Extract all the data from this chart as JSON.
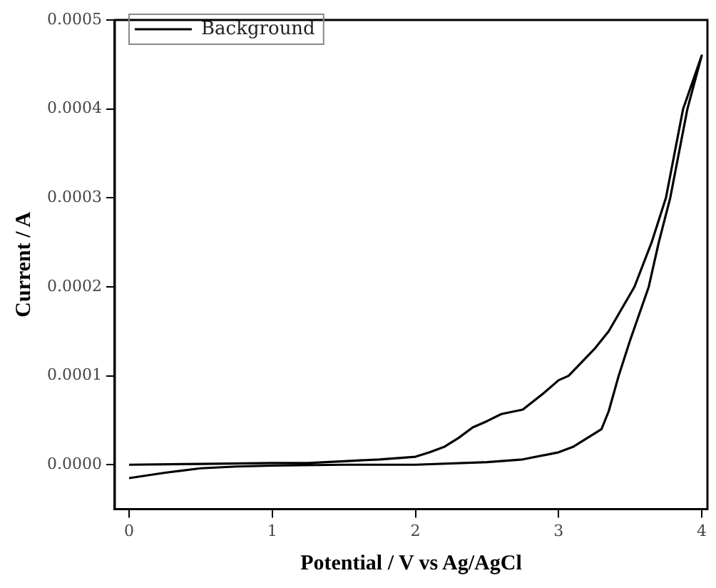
{
  "chart_data": {
    "type": "line",
    "xlabel": "Potential / V vs Ag/AgCl",
    "ylabel": "Current / A",
    "xlim": [
      -0.1,
      4.04
    ],
    "xticks": [
      0,
      1,
      2,
      3,
      4
    ],
    "ylim": [
      -5e-05,
      0.0005
    ],
    "yticks": [
      {
        "value": 0,
        "label": "0.0000"
      },
      {
        "value": 0.0001,
        "label": "0.0001"
      },
      {
        "value": 0.0002,
        "label": "0.0002"
      },
      {
        "value": 0.0003,
        "label": "0.0003"
      },
      {
        "value": 0.0004,
        "label": "0.0004"
      },
      {
        "value": 0.0005,
        "label": "0.0005"
      }
    ],
    "grid": false,
    "legend": "top left",
    "marker": "none",
    "line_style": "solid",
    "series": [
      {
        "name": "Background",
        "color": "#000000",
        "x": [
          0,
          0.25,
          0.5,
          0.75,
          1,
          1.5,
          2,
          2.5,
          2.75,
          3,
          3.1,
          3.2,
          3.3,
          3.35,
          3.42,
          3.5,
          3.63,
          3.7,
          3.78,
          3.9,
          4,
          3.87,
          3.75,
          3.65,
          3.53,
          3.35,
          3.25,
          3.07,
          3,
          2.9,
          2.75,
          2.6,
          2.5,
          2.4,
          2.3,
          2.2,
          2.1,
          2,
          1.75,
          1.5,
          1.25,
          1,
          0.5,
          0
        ],
        "values": [
          -1.5e-05,
          -9e-06,
          -4e-06,
          -2e-06,
          -1e-06,
          0,
          0,
          3e-06,
          6e-06,
          1.4e-05,
          2e-05,
          3e-05,
          4e-05,
          6e-05,
          0.0001,
          0.00014,
          0.0002,
          0.00025,
          0.0003,
          0.0004,
          0.00046,
          0.0004,
          0.0003,
          0.00025,
          0.0002,
          0.00015,
          0.00013,
          0.0001,
          9.5e-05,
          8.1e-05,
          6.2e-05,
          5.7e-05,
          4.9e-05,
          4.2e-05,
          3e-05,
          2e-05,
          1.4e-05,
          9e-06,
          6e-06,
          4e-06,
          2e-06,
          2e-06,
          1e-06,
          0
        ]
      }
    ]
  }
}
